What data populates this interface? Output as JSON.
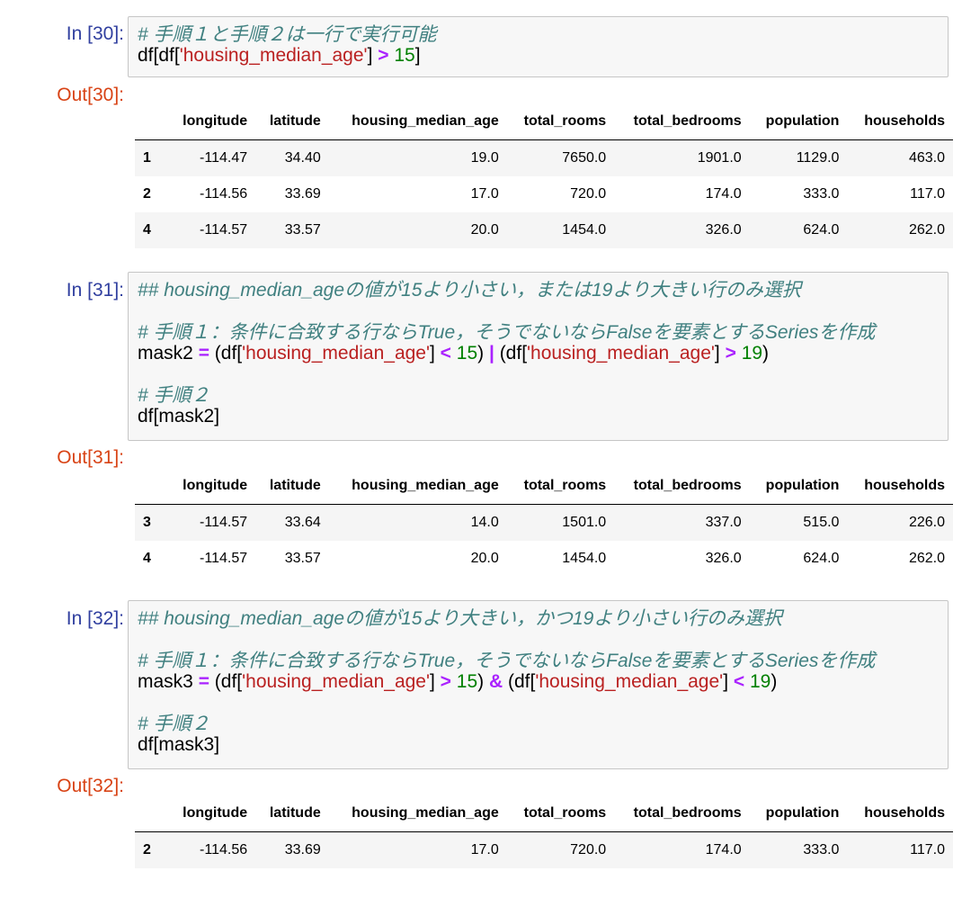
{
  "table_columns": [
    "",
    "longitude",
    "latitude",
    "housing_median_age",
    "total_rooms",
    "total_bedrooms",
    "population",
    "households"
  ],
  "cells": [
    {
      "in_prompt": "In [30]:",
      "out_prompt": "Out[30]:",
      "code_lines": [
        [
          {
            "t": "cm",
            "v": "# 手順１と手順２は一行で実行可能"
          }
        ],
        [
          {
            "t": "tx",
            "v": "df[df["
          },
          {
            "t": "st",
            "v": "'housing_median_age'"
          },
          {
            "t": "tx",
            "v": "] "
          },
          {
            "t": "op",
            "v": ">"
          },
          {
            "t": "tx",
            "v": " "
          },
          {
            "t": "nm",
            "v": "15"
          },
          {
            "t": "tx",
            "v": "]"
          }
        ]
      ],
      "rows": [
        [
          "1",
          "-114.47",
          "34.40",
          "19.0",
          "7650.0",
          "1901.0",
          "1129.0",
          "463.0"
        ],
        [
          "2",
          "-114.56",
          "33.69",
          "17.0",
          "720.0",
          "174.0",
          "333.0",
          "117.0"
        ],
        [
          "4",
          "-114.57",
          "33.57",
          "20.0",
          "1454.0",
          "326.0",
          "624.0",
          "262.0"
        ]
      ]
    },
    {
      "in_prompt": "In [31]:",
      "out_prompt": "Out[31]:",
      "code_lines": [
        [
          {
            "t": "cm",
            "v": "## housing_median_ageの値が15より小さい，または19より大きい行のみ選択"
          }
        ],
        [],
        [
          {
            "t": "cm",
            "v": "# 手順１：条件に合致する行ならTrue，そうでないならFalseを要素とするSeriesを作成"
          }
        ],
        [
          {
            "t": "tx",
            "v": "mask2 "
          },
          {
            "t": "op",
            "v": "="
          },
          {
            "t": "tx",
            "v": " (df["
          },
          {
            "t": "st",
            "v": "'housing_median_age'"
          },
          {
            "t": "tx",
            "v": "] "
          },
          {
            "t": "op",
            "v": "<"
          },
          {
            "t": "tx",
            "v": " "
          },
          {
            "t": "nm",
            "v": "15"
          },
          {
            "t": "tx",
            "v": ") "
          },
          {
            "t": "op",
            "v": "|"
          },
          {
            "t": "tx",
            "v": " (df["
          },
          {
            "t": "st",
            "v": "'housing_median_age'"
          },
          {
            "t": "tx",
            "v": "] "
          },
          {
            "t": "op",
            "v": ">"
          },
          {
            "t": "tx",
            "v": " "
          },
          {
            "t": "nm",
            "v": "19"
          },
          {
            "t": "tx",
            "v": ")"
          }
        ],
        [],
        [
          {
            "t": "cm",
            "v": "# 手順２"
          }
        ],
        [
          {
            "t": "tx",
            "v": "df[mask2]"
          }
        ]
      ],
      "rows": [
        [
          "3",
          "-114.57",
          "33.64",
          "14.0",
          "1501.0",
          "337.0",
          "515.0",
          "226.0"
        ],
        [
          "4",
          "-114.57",
          "33.57",
          "20.0",
          "1454.0",
          "326.0",
          "624.0",
          "262.0"
        ]
      ]
    },
    {
      "in_prompt": "In [32]:",
      "out_prompt": "Out[32]:",
      "code_lines": [
        [
          {
            "t": "cm",
            "v": "## housing_median_ageの値が15より大きい，かつ19より小さい行のみ選択"
          }
        ],
        [],
        [
          {
            "t": "cm",
            "v": "# 手順１：条件に合致する行ならTrue，そうでないならFalseを要素とするSeriesを作成"
          }
        ],
        [
          {
            "t": "tx",
            "v": "mask3 "
          },
          {
            "t": "op",
            "v": "="
          },
          {
            "t": "tx",
            "v": " (df["
          },
          {
            "t": "st",
            "v": "'housing_median_age'"
          },
          {
            "t": "tx",
            "v": "] "
          },
          {
            "t": "op",
            "v": ">"
          },
          {
            "t": "tx",
            "v": " "
          },
          {
            "t": "nm",
            "v": "15"
          },
          {
            "t": "tx",
            "v": ") "
          },
          {
            "t": "op",
            "v": "&"
          },
          {
            "t": "tx",
            "v": " (df["
          },
          {
            "t": "st",
            "v": "'housing_median_age'"
          },
          {
            "t": "tx",
            "v": "] "
          },
          {
            "t": "op",
            "v": "<"
          },
          {
            "t": "tx",
            "v": " "
          },
          {
            "t": "nm",
            "v": "19"
          },
          {
            "t": "tx",
            "v": ")"
          }
        ],
        [],
        [
          {
            "t": "cm",
            "v": "# 手順２"
          }
        ],
        [
          {
            "t": "tx",
            "v": "df[mask3]"
          }
        ]
      ],
      "rows": [
        [
          "2",
          "-114.56",
          "33.69",
          "17.0",
          "720.0",
          "174.0",
          "333.0",
          "117.0"
        ]
      ]
    }
  ]
}
